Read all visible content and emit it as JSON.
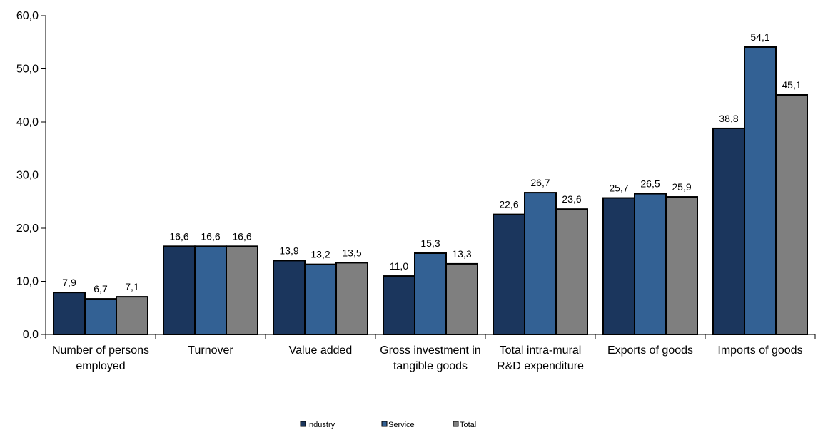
{
  "chart_data": {
    "type": "bar",
    "title": "",
    "xlabel": "",
    "ylabel": "",
    "ylim": [
      0,
      60
    ],
    "yticks": [
      "0,0",
      "10,0",
      "20,0",
      "30,0",
      "40,0",
      "50,0",
      "60,0"
    ],
    "grid": false,
    "legend_position": "bottom-center",
    "categories": [
      [
        "Number of persons",
        "employed"
      ],
      [
        "Turnover"
      ],
      [
        "Value added"
      ],
      [
        "Gross investment in",
        "tangible goods"
      ],
      [
        "Total intra-mural",
        "R&D expenditure"
      ],
      [
        "Exports of goods"
      ],
      [
        "Imports of goods"
      ]
    ],
    "series": [
      {
        "name": "Industry",
        "color": "#1b365d",
        "values": [
          7.9,
          16.6,
          13.9,
          11.0,
          22.6,
          25.7,
          38.8
        ],
        "labels": [
          "7,9",
          "16,6",
          "13,9",
          "11,0",
          "22,6",
          "25,7",
          "38,8"
        ]
      },
      {
        "name": "Service",
        "color": "#336194",
        "values": [
          6.7,
          16.6,
          13.2,
          15.3,
          26.7,
          26.5,
          54.1
        ],
        "labels": [
          "6,7",
          "16,6",
          "13,2",
          "15,3",
          "26,7",
          "26,5",
          "54,1"
        ]
      },
      {
        "name": "Total",
        "color": "#7f7f7f",
        "values": [
          7.1,
          16.6,
          13.5,
          13.3,
          23.6,
          25.9,
          45.1
        ],
        "labels": [
          "7,1",
          "16,6",
          "13,5",
          "13,3",
          "23,6",
          "25,9",
          "45,1"
        ]
      }
    ]
  }
}
